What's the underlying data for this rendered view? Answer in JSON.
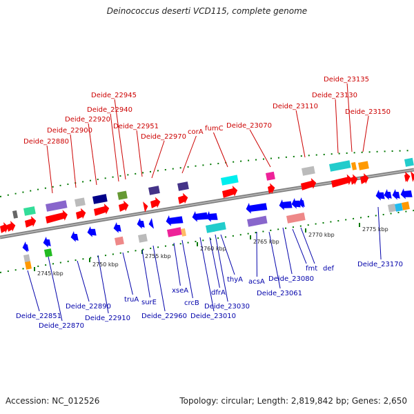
{
  "title": "Deinococcus deserti VCD115, complete genome",
  "footer": {
    "accession": "Accession: NC_012526",
    "stats": "Topology: circular; Length: 2,819,842 bp; Genes: 2,650"
  },
  "colors": {
    "forward_label": "#cc0000",
    "reverse_label": "#0000aa",
    "forward_arrow": "#ff0000",
    "reverse_arrow": "#0000ff",
    "backbone": "#808080",
    "tick": "#007700"
  },
  "scale_ticks": [
    {
      "label": "2745 kbp"
    },
    {
      "label": "2750 kbp"
    },
    {
      "label": "2755 kbp"
    },
    {
      "label": "2760 kbp"
    },
    {
      "label": "2765 kbp"
    },
    {
      "label": "2770 kbp"
    },
    {
      "label": "2775 kbp"
    }
  ],
  "forward_labels": [
    {
      "name": "Deide_22880"
    },
    {
      "name": "Deide_22900"
    },
    {
      "name": "Deide_22920"
    },
    {
      "name": "Deide_22940"
    },
    {
      "name": "Deide_22945"
    },
    {
      "name": "Deide_22951"
    },
    {
      "name": "Deide_22970"
    },
    {
      "name": "corA"
    },
    {
      "name": "fumC"
    },
    {
      "name": "Deide_23070"
    },
    {
      "name": "Deide_23110"
    },
    {
      "name": "Deide_23130"
    },
    {
      "name": "Deide_23135"
    },
    {
      "name": "Deide_23150"
    }
  ],
  "reverse_labels": [
    {
      "name": "Deide_22851"
    },
    {
      "name": "Deide_22870"
    },
    {
      "name": "Deide_22890"
    },
    {
      "name": "Deide_22910"
    },
    {
      "name": "truA"
    },
    {
      "name": "surE"
    },
    {
      "name": "Deide_22960"
    },
    {
      "name": "xseA"
    },
    {
      "name": "crcB"
    },
    {
      "name": "dfrA"
    },
    {
      "name": "Deide_23010"
    },
    {
      "name": "Deide_23030"
    },
    {
      "name": "thyA"
    },
    {
      "name": "acsA"
    },
    {
      "name": "Deide_23061"
    },
    {
      "name": "Deide_23080"
    },
    {
      "name": "fmt"
    },
    {
      "name": "def"
    },
    {
      "name": "Deide_23170"
    }
  ]
}
